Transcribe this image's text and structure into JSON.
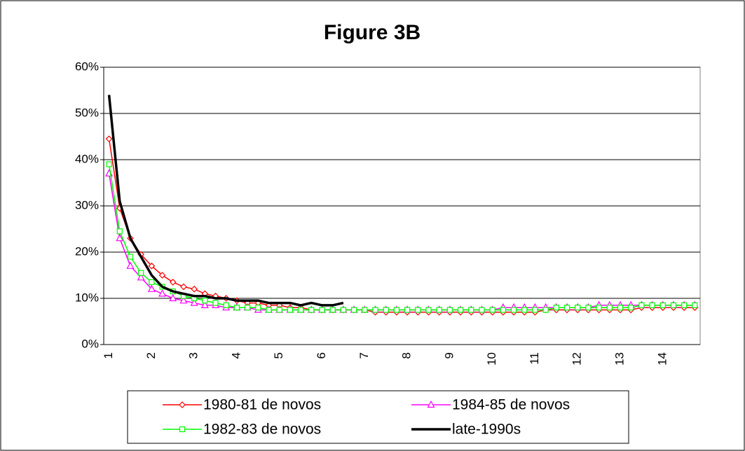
{
  "chart_data": {
    "type": "line",
    "title": "Figure 3B",
    "categories": [
      "1",
      null,
      null,
      null,
      "2",
      null,
      null,
      null,
      "3",
      null,
      null,
      null,
      "4",
      null,
      null,
      null,
      "5",
      null,
      null,
      null,
      "6",
      null,
      null,
      null,
      "7",
      null,
      null,
      null,
      "8",
      null,
      null,
      null,
      "9",
      null,
      null,
      null,
      "10",
      null,
      null,
      null,
      "11",
      null,
      null,
      null,
      "12",
      null,
      null,
      null,
      "13",
      null,
      null,
      null,
      "14",
      null,
      null,
      null
    ],
    "ylim": [
      0,
      60
    ],
    "yticks": [
      {
        "value": 0,
        "label": "0%"
      },
      {
        "value": 10,
        "label": "10%"
      },
      {
        "value": 20,
        "label": "20%"
      },
      {
        "value": 30,
        "label": "30%"
      },
      {
        "value": 40,
        "label": "40%"
      },
      {
        "value": 50,
        "label": "50%"
      },
      {
        "value": 60,
        "label": "60%"
      }
    ],
    "grid": true,
    "series": [
      {
        "name": "1980-81 de novos",
        "color": "#ff0000",
        "marker": "diamond",
        "values": [
          44.5,
          29.5,
          23,
          19.5,
          17,
          15,
          13.5,
          12.5,
          12,
          11,
          10.5,
          10,
          9.5,
          9,
          9,
          8.5,
          8.5,
          8,
          8,
          7.5,
          7.5,
          7.5,
          7.5,
          7.5,
          7.5,
          7,
          7,
          7,
          7,
          7,
          7,
          7,
          7,
          7,
          7,
          7,
          7,
          7,
          7,
          7,
          7,
          7.5,
          7.5,
          7.5,
          7.5,
          7.5,
          7.5,
          7.5,
          7.5,
          7.5,
          8,
          8,
          8,
          8,
          8,
          8
        ]
      },
      {
        "name": "1984-85 de novos",
        "color": "#ff00ff",
        "marker": "triangle",
        "values": [
          37,
          23,
          17,
          14.5,
          12,
          11,
          10,
          9.5,
          9,
          8.5,
          8.5,
          8,
          8,
          8,
          7.5,
          7.5,
          7.5,
          7.5,
          7.5,
          7.5,
          7.5,
          7.5,
          7.5,
          7.5,
          7.5,
          7.5,
          7.5,
          7.5,
          7.5,
          7.5,
          7.5,
          7.5,
          7.5,
          7.5,
          7.5,
          7.5,
          7.5,
          8,
          8,
          8,
          8,
          8,
          8,
          8,
          8,
          8,
          8.5,
          8.5,
          8.5,
          8.5,
          8.5,
          8.5,
          8.5,
          8.5,
          8.5,
          8.5
        ]
      },
      {
        "name": "1982-83 de novos",
        "color": "#00ff00",
        "marker": "square",
        "values": [
          39,
          24.5,
          19,
          15.5,
          13.5,
          12.5,
          11.5,
          10.5,
          10,
          9.5,
          9,
          8.5,
          8,
          8,
          8,
          7.5,
          7.5,
          7.5,
          7.5,
          7.5,
          7.5,
          7.5,
          7.5,
          7.5,
          7.5,
          7.5,
          7.5,
          7.5,
          7.5,
          7.5,
          7.5,
          7.5,
          7.5,
          7.5,
          7.5,
          7.5,
          7.5,
          7.5,
          7.5,
          7.5,
          7.5,
          7.5,
          8,
          8,
          8,
          8,
          8,
          8,
          8,
          8,
          8.5,
          8.5,
          8.5,
          8.5,
          8.5,
          8.5
        ]
      },
      {
        "name": "late-1990s",
        "color": "#000000",
        "marker": "none",
        "values": [
          54,
          31,
          23,
          19,
          15,
          12.5,
          11.5,
          11,
          10.5,
          10.5,
          10,
          10,
          9.5,
          9.5,
          9.5,
          9,
          9,
          9,
          8.5,
          9,
          8.5,
          8.5,
          9,
          null,
          null,
          null,
          null,
          null,
          null,
          null,
          null,
          null,
          null,
          null,
          null,
          null,
          null,
          null,
          null,
          null,
          null,
          null,
          null,
          null,
          null,
          null,
          null,
          null,
          null,
          null,
          null,
          null,
          null,
          null,
          null,
          null
        ]
      }
    ]
  }
}
